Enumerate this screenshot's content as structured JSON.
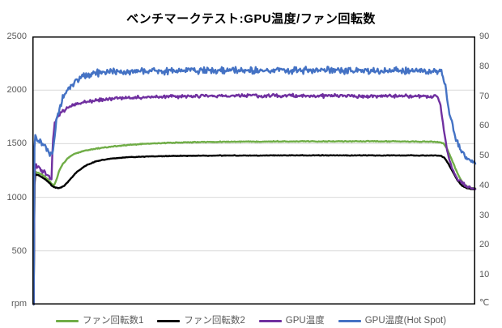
{
  "chart_data": {
    "type": "line",
    "title": "ベンチマークテスト:GPU温度/ファン回転数",
    "x_axis": {
      "tick_labels": [],
      "note": "time axis, no tick labels shown"
    },
    "left_axis": {
      "unit": "rpm",
      "min": 0,
      "max": 2500,
      "ticks": [
        2500,
        2000,
        1500,
        1000,
        500
      ]
    },
    "right_axis": {
      "unit": "℃",
      "min": 0,
      "max": 90,
      "ticks": [
        90,
        80,
        70,
        60,
        50,
        40,
        30,
        20,
        10
      ]
    },
    "grid": "horizontal gridlines at left-axis ticks, no vertical gridlines",
    "legend_position": "bottom",
    "plot_border_color": "#000000",
    "grid_color": "#D9D9D9",
    "axis_text_color": "#595959",
    "background_color": "#FFFFFF",
    "series": [
      {
        "name": "ファン回転数1",
        "axis": "left",
        "color": "#70AD47",
        "steady_state_value": 1520,
        "noise_amplitude": 5,
        "keypoints": [
          [
            0.003,
            0
          ],
          [
            0.005,
            1242
          ],
          [
            0.012,
            1230
          ],
          [
            0.021,
            1212
          ],
          [
            0.03,
            1186
          ],
          [
            0.038,
            1152
          ],
          [
            0.044,
            1125
          ],
          [
            0.049,
            1112
          ],
          [
            0.054,
            1160
          ],
          [
            0.06,
            1240
          ],
          [
            0.068,
            1305
          ],
          [
            0.08,
            1365
          ],
          [
            0.095,
            1405
          ],
          [
            0.115,
            1432
          ],
          [
            0.145,
            1455
          ],
          [
            0.19,
            1478
          ],
          [
            0.25,
            1498
          ],
          [
            0.32,
            1510
          ],
          [
            0.42,
            1517
          ],
          [
            0.55,
            1521
          ],
          [
            0.68,
            1522
          ],
          [
            0.8,
            1521
          ],
          [
            0.9,
            1518
          ],
          [
            0.92,
            1515
          ],
          [
            0.928,
            1502
          ],
          [
            0.937,
            1448
          ],
          [
            0.946,
            1360
          ],
          [
            0.955,
            1268
          ],
          [
            0.964,
            1185
          ],
          [
            0.973,
            1130
          ],
          [
            0.982,
            1100
          ],
          [
            0.991,
            1088
          ],
          [
            1.0,
            1085
          ]
        ]
      },
      {
        "name": "ファン回転数2",
        "axis": "left",
        "color": "#000000",
        "steady_state_value": 1390,
        "noise_amplitude": 3.5,
        "keypoints": [
          [
            0.003,
            0
          ],
          [
            0.005,
            1220
          ],
          [
            0.012,
            1207
          ],
          [
            0.021,
            1190
          ],
          [
            0.03,
            1165
          ],
          [
            0.038,
            1133
          ],
          [
            0.045,
            1103
          ],
          [
            0.052,
            1090
          ],
          [
            0.062,
            1086
          ],
          [
            0.072,
            1108
          ],
          [
            0.085,
            1165
          ],
          [
            0.1,
            1235
          ],
          [
            0.12,
            1295
          ],
          [
            0.145,
            1338
          ],
          [
            0.175,
            1360
          ],
          [
            0.21,
            1372
          ],
          [
            0.26,
            1381
          ],
          [
            0.33,
            1386
          ],
          [
            0.42,
            1389
          ],
          [
            0.52,
            1390
          ],
          [
            0.62,
            1391
          ],
          [
            0.72,
            1391
          ],
          [
            0.82,
            1390
          ],
          [
            0.9,
            1390
          ],
          [
            0.922,
            1389
          ],
          [
            0.93,
            1370
          ],
          [
            0.94,
            1308
          ],
          [
            0.95,
            1232
          ],
          [
            0.96,
            1158
          ],
          [
            0.97,
            1108
          ],
          [
            0.98,
            1085
          ],
          [
            0.99,
            1077
          ],
          [
            1.0,
            1075
          ]
        ]
      },
      {
        "name": "GPU温度",
        "axis": "right",
        "color": "#7030A0",
        "steady_state_value": 70,
        "noise_amplitude": 0.7,
        "keypoints": [
          [
            0.003,
            0
          ],
          [
            0.005,
            47.2
          ],
          [
            0.012,
            46.2
          ],
          [
            0.022,
            45.0
          ],
          [
            0.031,
            43.8
          ],
          [
            0.039,
            42.6
          ],
          [
            0.043,
            42.0
          ],
          [
            0.046,
            54.0
          ],
          [
            0.05,
            61.0
          ],
          [
            0.057,
            63.0
          ],
          [
            0.066,
            64.5
          ],
          [
            0.08,
            66.0
          ],
          [
            0.1,
            67.3
          ],
          [
            0.13,
            68.3
          ],
          [
            0.17,
            69.0
          ],
          [
            0.22,
            69.5
          ],
          [
            0.3,
            69.8
          ],
          [
            0.4,
            70.0
          ],
          [
            0.5,
            70.1
          ],
          [
            0.6,
            70.1
          ],
          [
            0.7,
            70.0
          ],
          [
            0.8,
            70.0
          ],
          [
            0.88,
            69.9
          ],
          [
            0.916,
            69.8
          ],
          [
            0.922,
            66.5
          ],
          [
            0.929,
            58.5
          ],
          [
            0.937,
            51.5
          ],
          [
            0.945,
            46.8
          ],
          [
            0.954,
            43.8
          ],
          [
            0.963,
            41.8
          ],
          [
            0.973,
            40.4
          ],
          [
            0.985,
            39.3
          ],
          [
            1.0,
            38.6
          ]
        ]
      },
      {
        "name": "GPU温度(Hot Spot)",
        "axis": "right",
        "color": "#4472C4",
        "steady_state_value": 78.5,
        "noise_amplitude": 1.4,
        "keypoints": [
          [
            0.003,
            0
          ],
          [
            0.005,
            57.3
          ],
          [
            0.012,
            55.6
          ],
          [
            0.022,
            53.8
          ],
          [
            0.032,
            52.2
          ],
          [
            0.04,
            50.8
          ],
          [
            0.045,
            50.0
          ],
          [
            0.049,
            55.0
          ],
          [
            0.054,
            61.0
          ],
          [
            0.061,
            66.0
          ],
          [
            0.071,
            70.0
          ],
          [
            0.084,
            73.2
          ],
          [
            0.1,
            75.4
          ],
          [
            0.12,
            76.9
          ],
          [
            0.15,
            77.8
          ],
          [
            0.2,
            78.3
          ],
          [
            0.3,
            78.5
          ],
          [
            0.4,
            78.5
          ],
          [
            0.5,
            78.6
          ],
          [
            0.6,
            78.6
          ],
          [
            0.7,
            78.5
          ],
          [
            0.8,
            78.4
          ],
          [
            0.88,
            78.3
          ],
          [
            0.924,
            78.2
          ],
          [
            0.93,
            75.5
          ],
          [
            0.937,
            68.5
          ],
          [
            0.944,
            63.0
          ],
          [
            0.952,
            58.0
          ],
          [
            0.96,
            54.2
          ],
          [
            0.968,
            51.6
          ],
          [
            0.977,
            49.7
          ],
          [
            0.988,
            48.4
          ],
          [
            1.0,
            47.6
          ]
        ]
      }
    ]
  }
}
